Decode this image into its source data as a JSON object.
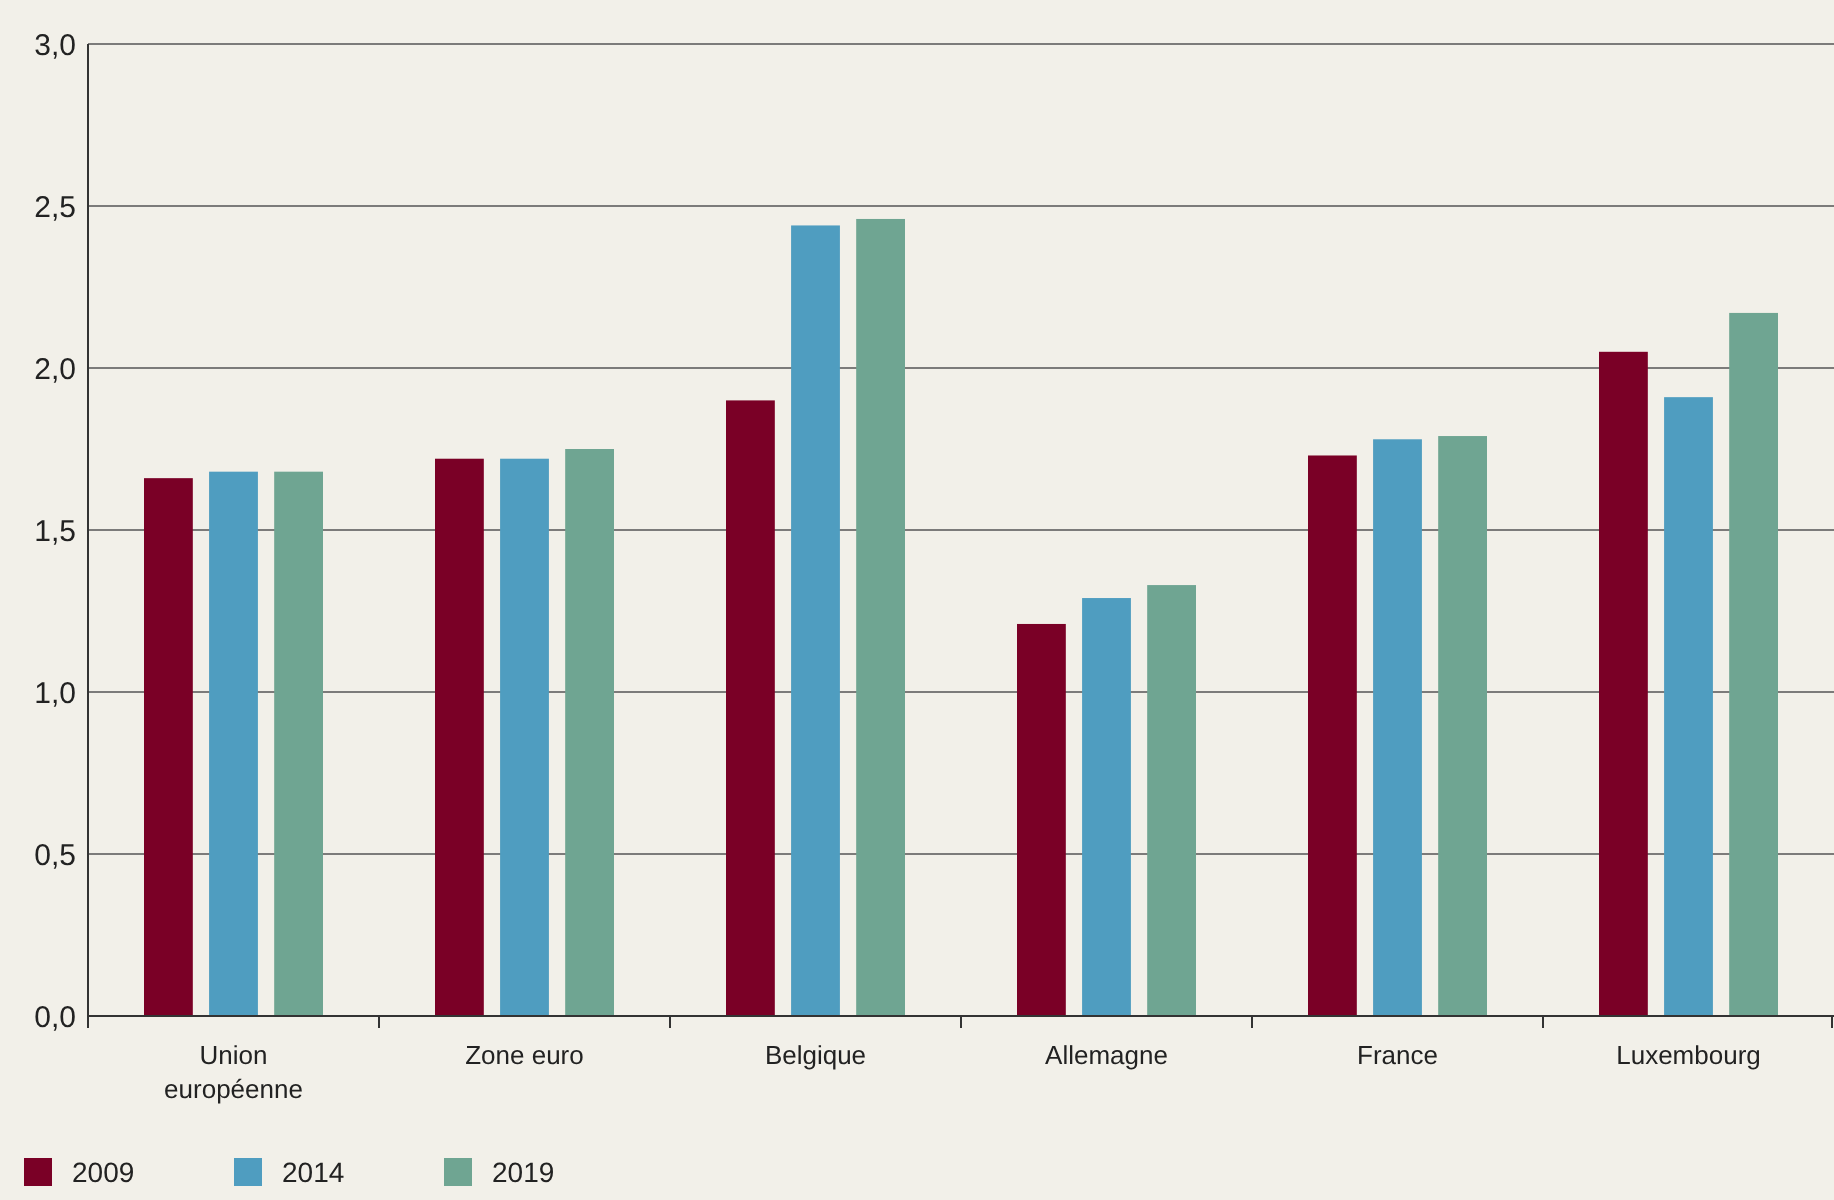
{
  "chart_data": {
    "type": "bar",
    "categories": [
      "Union européenne",
      "Zone euro",
      "Belgique",
      "Allemagne",
      "France",
      "Luxembourg"
    ],
    "series": [
      {
        "name": "2009",
        "color": "#7a0026",
        "values": [
          1.66,
          1.72,
          1.9,
          1.21,
          1.73,
          2.05
        ]
      },
      {
        "name": "2014",
        "color": "#4f9dc0",
        "values": [
          1.68,
          1.72,
          2.44,
          1.29,
          1.78,
          1.91
        ]
      },
      {
        "name": "2019",
        "color": "#6fa592",
        "values": [
          1.68,
          1.75,
          2.46,
          1.33,
          1.79,
          2.17
        ]
      }
    ],
    "ylim": [
      0,
      3
    ],
    "yticks": [
      {
        "value": 0,
        "label": "0,0"
      },
      {
        "value": 0.5,
        "label": "0,5"
      },
      {
        "value": 1,
        "label": "1,0"
      },
      {
        "value": 1.5,
        "label": "1,5"
      },
      {
        "value": 2,
        "label": "2,0"
      },
      {
        "value": 2.5,
        "label": "2,5"
      },
      {
        "value": 3,
        "label": "3,0"
      }
    ],
    "grid": "y",
    "legend": "bottom left"
  }
}
